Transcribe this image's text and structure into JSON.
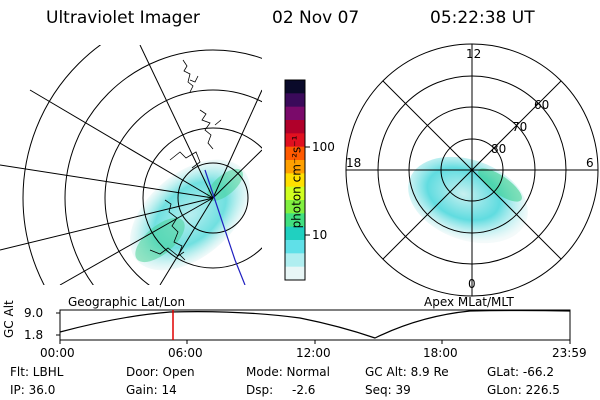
{
  "header": {
    "title": "Ultraviolet Imager",
    "date": "02 Nov 07",
    "time": "05:22:38 UT"
  },
  "colorbar": {
    "unit_label": "photon cm⁻²s⁻¹",
    "tick_labels": [
      "100",
      "10"
    ],
    "colors": [
      "#0a0a2a",
      "#3a0a5a",
      "#7a0a6a",
      "#b0002a",
      "#e01020",
      "#ff5a00",
      "#ffa000",
      "#ffe000",
      "#d0ff20",
      "#80f040",
      "#40e080",
      "#20d0c0",
      "#60e0e8",
      "#b0eef0",
      "#e8f6f6"
    ]
  },
  "left_map": {
    "caption": "Geographic Lat/Lon"
  },
  "right_map": {
    "caption": "Apex MLat/MLT",
    "mlt_labels": {
      "top": "12",
      "left": "18",
      "right": "6",
      "bottom": "0"
    },
    "lat_labels": [
      "60",
      "70",
      "80"
    ]
  },
  "timeline": {
    "axis_label": "GC Alt",
    "y_ticks": [
      "9.0",
      "1.8"
    ],
    "x_ticks": [
      "00:00",
      "06:00",
      "12:00",
      "18:00",
      "23:59"
    ],
    "marker_color": "#e00000"
  },
  "info": {
    "filt": "Flt: LBHL",
    "ip": "IP: 36.0",
    "door": "Door: Open",
    "gain": "Gain: 14",
    "mode": "Mode: Normal",
    "dsp_label": "Dsp:",
    "dsp_value": "-2.6",
    "gc_alt": "GC Alt: 8.9 Re",
    "seq": "Seq: 39",
    "glat": "GLat: -66.2",
    "glon": "GLon: 226.5"
  }
}
